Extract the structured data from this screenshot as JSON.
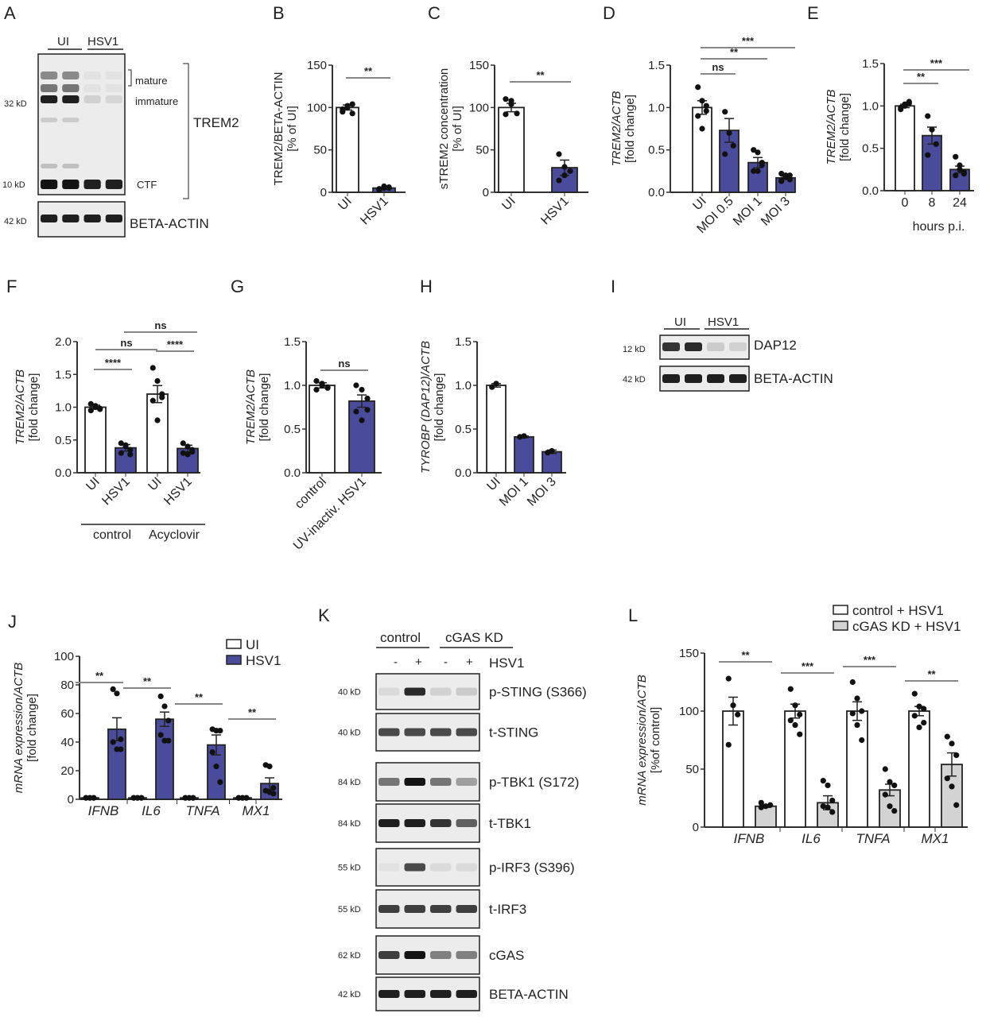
{
  "panel_letters": [
    "A",
    "B",
    "C",
    "D",
    "E",
    "F",
    "G",
    "H",
    "I",
    "J",
    "K",
    "L"
  ],
  "colors": {
    "hsv1": "#4b4b9b",
    "ui": "#ffffff",
    "cgas_kd": "#d3d3d3",
    "axis": "#333333",
    "sig_line": "#888888"
  },
  "blot_a": {
    "groups": [
      "UI",
      "HSV1"
    ],
    "markers": [
      "32 kD",
      "10 kD",
      "42 kD"
    ],
    "bands": [
      "mature",
      "immature",
      "CTF"
    ],
    "protein": "TREM2",
    "loading": "BETA-ACTIN"
  },
  "blot_i": {
    "groups": [
      "UI",
      "HSV1"
    ],
    "markers": [
      "12 kD",
      "42 kD"
    ],
    "rows": [
      "DAP12",
      "BETA-ACTIN"
    ]
  },
  "blot_k": {
    "groups": [
      "control",
      "cGAS KD"
    ],
    "treatment_signs": [
      "-",
      "+",
      "-",
      "+"
    ],
    "treatment": "HSV1",
    "rows": [
      {
        "marker": "40 kD",
        "label": "p-STING (S366)"
      },
      {
        "marker": "40 kD",
        "label": "t-STING"
      },
      {
        "marker": "84 kD",
        "label": "p-TBK1 (S172)"
      },
      {
        "marker": "84 kD",
        "label": "t-TBK1"
      },
      {
        "marker": "55 kD",
        "label": "p-IRF3 (S396)"
      },
      {
        "marker": "55 kD",
        "label": "t-IRF3"
      },
      {
        "marker": "62 kD",
        "label": "cGAS"
      },
      {
        "marker": "42 kD",
        "label": "BETA-ACTIN"
      }
    ]
  },
  "chart_data": [
    {
      "panel": "B",
      "type": "bar",
      "categories": [
        "UI",
        "HSV1"
      ],
      "values": [
        100,
        5
      ],
      "sem": [
        3,
        1
      ],
      "points": [
        [
          95,
          100,
          104,
          98,
          102,
          93
        ],
        [
          3,
          5,
          6,
          4,
          7,
          5
        ]
      ],
      "bar_colors": [
        "#ffffff",
        "#4b4b9b"
      ],
      "ylim": [
        0,
        150
      ],
      "yticks": [
        0,
        50,
        100,
        150
      ],
      "ytick_labels": [
        "0",
        "50",
        "100",
        "150"
      ],
      "ylabel": [
        "TREM2/BETA-ACTIN",
        "[% of UI]"
      ],
      "ylabel_italic": false,
      "xtick_rotation": -45,
      "significance": [
        {
          "from": 0,
          "to": 1,
          "label": "**"
        }
      ]
    },
    {
      "panel": "C",
      "type": "bar",
      "categories": [
        "UI",
        "HSV1"
      ],
      "values": [
        100,
        29
      ],
      "sem": [
        5,
        9
      ],
      "points": [
        [
          110,
          104,
          93,
          92,
          108
        ],
        [
          45,
          20,
          25,
          14,
          30
        ]
      ],
      "bar_colors": [
        "#ffffff",
        "#4b4b9b"
      ],
      "ylim": [
        0,
        150
      ],
      "yticks": [
        0,
        50,
        100,
        150
      ],
      "ytick_labels": [
        "0",
        "50",
        "100",
        "150"
      ],
      "ylabel": [
        "sTREM2 concentration",
        "[% of UI]"
      ],
      "ylabel_italic": false,
      "xtick_rotation": -45,
      "significance": [
        {
          "from": 0,
          "to": 1,
          "label": "**"
        }
      ]
    },
    {
      "panel": "D",
      "type": "bar",
      "categories": [
        "UI",
        "MOI 0.5",
        "MOI 1",
        "MOI 3"
      ],
      "values": [
        1.0,
        0.73,
        0.35,
        0.17
      ],
      "sem": [
        0.08,
        0.14,
        0.06,
        0.02
      ],
      "points": [
        [
          1.24,
          1.08,
          0.96,
          0.9,
          0.75,
          1.02
        ],
        [
          0.95,
          0.7,
          0.55,
          0.45
        ],
        [
          0.5,
          0.47,
          0.32,
          0.25,
          0.25,
          0.35
        ],
        [
          0.22,
          0.2,
          0.15,
          0.13,
          0.18,
          0.2,
          0.14
        ]
      ],
      "bar_colors": [
        "#ffffff",
        "#4b4b9b",
        "#4b4b9b",
        "#4b4b9b"
      ],
      "ylim": [
        0,
        1.5
      ],
      "yticks": [
        0,
        0.5,
        1.0,
        1.5
      ],
      "ytick_labels": [
        "0.0",
        "0.5",
        "1.0",
        "1.5"
      ],
      "ylabel": [
        "TREM2/ACTB",
        "[fold change]"
      ],
      "ylabel_italic": true,
      "xtick_rotation": -45,
      "significance": [
        {
          "from": 0,
          "to": 1,
          "label": "ns"
        },
        {
          "from": 0,
          "to": 2,
          "label": "**"
        },
        {
          "from": 0,
          "to": 3,
          "label": "***"
        }
      ]
    },
    {
      "panel": "E",
      "type": "bar",
      "categories": [
        "0",
        "8",
        "24"
      ],
      "values": [
        1.0,
        0.65,
        0.25
      ],
      "sem": [
        0.02,
        0.1,
        0.04
      ],
      "points": [
        [
          0.98,
          1.02,
          1.05,
          0.96,
          1.0,
          1.03
        ],
        [
          0.88,
          0.72,
          0.55,
          0.42
        ],
        [
          0.4,
          0.3,
          0.22,
          0.18,
          0.25,
          0.2
        ]
      ],
      "bar_colors": [
        "#ffffff",
        "#4b4b9b",
        "#4b4b9b"
      ],
      "ylim": [
        0,
        1.5
      ],
      "yticks": [
        0,
        0.5,
        1.0,
        1.5
      ],
      "ytick_labels": [
        "0.0",
        "0.5",
        "1.0",
        "1.5"
      ],
      "ylabel": [
        "TREM2/ACTB",
        "[fold change]"
      ],
      "ylabel_italic": true,
      "xtick_rotation": 0,
      "xlabel": "hours p.i.",
      "significance": [
        {
          "from": 0,
          "to": 1,
          "label": "**"
        },
        {
          "from": 0,
          "to": 2,
          "label": "***"
        }
      ]
    },
    {
      "panel": "F",
      "type": "bar",
      "categories": [
        "UI",
        "HSV1",
        "UI",
        "HSV1"
      ],
      "values": [
        1.0,
        0.38,
        1.2,
        0.37
      ],
      "sem": [
        0.03,
        0.05,
        0.13,
        0.05
      ],
      "points": [
        [
          1.05,
          1.0,
          0.97,
          0.95,
          1.02,
          0.98
        ],
        [
          0.45,
          0.4,
          0.35,
          0.3,
          0.42,
          0.28
        ],
        [
          1.6,
          1.4,
          1.2,
          1.1,
          0.8,
          1.15
        ],
        [
          0.45,
          0.4,
          0.35,
          0.3,
          0.28,
          0.32
        ]
      ],
      "bar_colors": [
        "#ffffff",
        "#4b4b9b",
        "#ffffff",
        "#4b4b9b"
      ],
      "groups": [
        {
          "label": "control",
          "from": 0,
          "to": 1
        },
        {
          "label": "Acyclovir",
          "from": 2,
          "to": 3
        }
      ],
      "ylim": [
        0,
        2.0
      ],
      "yticks": [
        0,
        0.5,
        1.0,
        1.5,
        2.0
      ],
      "ytick_labels": [
        "0.0",
        "0.5",
        "1.0",
        "1.5",
        "2.0"
      ],
      "ylabel": [
        "TREM2/ACTB",
        "[fold change]"
      ],
      "ylabel_italic": true,
      "xtick_rotation": -45,
      "significance": [
        {
          "from": 0,
          "to": 1,
          "label": "****"
        },
        {
          "from": 2,
          "to": 3,
          "label": "****"
        },
        {
          "from": 0,
          "to": 2,
          "label": "ns"
        },
        {
          "from": 1,
          "to": 3,
          "label": "ns"
        }
      ]
    },
    {
      "panel": "G",
      "type": "bar",
      "categories": [
        "control",
        "UV-inactiv. HSV1"
      ],
      "values": [
        1.0,
        0.82
      ],
      "sem": [
        0.03,
        0.07
      ],
      "points": [
        [
          1.05,
          1.0,
          0.97,
          0.95,
          1.02,
          0.98
        ],
        [
          1.0,
          0.95,
          0.85,
          0.7,
          0.6,
          0.72
        ]
      ],
      "bar_colors": [
        "#ffffff",
        "#4b4b9b"
      ],
      "ylim": [
        0,
        1.5
      ],
      "yticks": [
        0,
        0.5,
        1.0,
        1.5
      ],
      "ytick_labels": [
        "0.0",
        "0.5",
        "1.0",
        "1.5"
      ],
      "ylabel": [
        "TREM2/ACTB",
        "[fold change]"
      ],
      "ylabel_italic": true,
      "xtick_rotation": -45,
      "significance": [
        {
          "from": 0,
          "to": 1,
          "label": "ns"
        }
      ]
    },
    {
      "panel": "H",
      "type": "bar",
      "categories": [
        "UI",
        "MOI 1",
        "MOI 3"
      ],
      "values": [
        1.0,
        0.41,
        0.24
      ],
      "sem": [
        0.02,
        0.01,
        0.02
      ],
      "points": [
        [
          0.98,
          1.02
        ],
        [
          0.41,
          0.42
        ],
        [
          0.23,
          0.25
        ]
      ],
      "bar_colors": [
        "#ffffff",
        "#4b4b9b",
        "#4b4b9b"
      ],
      "ylim": [
        0,
        1.5
      ],
      "yticks": [
        0,
        0.5,
        1.0,
        1.5
      ],
      "ytick_labels": [
        "0.0",
        "0.5",
        "1.0",
        "1.5"
      ],
      "ylabel": [
        "TYROBP (DAP12)/ACTB",
        "[fold change]"
      ],
      "ylabel_italic": true,
      "xtick_rotation": -45,
      "significance": []
    },
    {
      "panel": "J",
      "type": "bar",
      "categories": [
        "IFNB",
        "IL6",
        "TNFA",
        "MX1"
      ],
      "xtick_italic": true,
      "series": [
        {
          "name": "UI",
          "color": "#ffffff",
          "values": [
            1,
            1,
            1,
            1
          ],
          "sem": [
            0.2,
            0.2,
            0.2,
            0.2
          ],
          "points": [
            [
              1,
              1,
              1,
              1,
              1,
              1
            ],
            [
              1,
              1,
              1,
              1,
              1,
              1
            ],
            [
              1,
              1,
              1,
              1,
              1,
              1
            ],
            [
              1,
              1,
              1,
              1,
              1,
              1
            ]
          ]
        },
        {
          "name": "HSV1",
          "color": "#4b4b9b",
          "values": [
            49,
            56,
            38,
            11
          ],
          "sem": [
            8,
            5,
            7,
            4
          ],
          "points": [
            [
              77,
              74,
              42,
              40,
              35,
              35
            ],
            [
              72,
              65,
              55,
              45,
              41,
              41
            ],
            [
              49,
              48,
              48,
              33,
              23,
              12
            ],
            [
              24,
              23,
              8,
              6,
              5,
              4
            ]
          ]
        }
      ],
      "legend": "top-right",
      "ylim": [
        0,
        100
      ],
      "yticks": [
        0,
        20,
        40,
        60,
        80,
        100
      ],
      "ytick_labels": [
        "0",
        "20",
        "40",
        "60",
        "80",
        "100"
      ],
      "ylabel": [
        "mRNA expression/ACTB",
        "[fold change]"
      ],
      "ylabel_italic": true,
      "xtick_rotation": 0,
      "significance": [
        {
          "category": 0,
          "label": "**"
        },
        {
          "category": 1,
          "label": "**"
        },
        {
          "category": 2,
          "label": "**"
        },
        {
          "category": 3,
          "label": "**"
        }
      ]
    },
    {
      "panel": "L",
      "type": "bar",
      "categories": [
        "IFNB",
        "IL6",
        "TNFA",
        "MX1"
      ],
      "xtick_italic": true,
      "series": [
        {
          "name": "control + HSV1",
          "color": "#ffffff",
          "values": [
            100,
            100,
            100,
            100
          ],
          "sem": [
            12,
            6,
            8,
            4
          ],
          "points": [
            [
              128,
              105,
              97,
              71
            ],
            [
              119,
              105,
              97,
              92,
              88,
              80
            ],
            [
              125,
              111,
              100,
              98,
              88,
              75
            ],
            [
              115,
              104,
              102,
              96,
              86,
              90
            ]
          ]
        },
        {
          "name": "cGAS KD + HSV1",
          "color": "#d3d3d3",
          "values": [
            18,
            21,
            32,
            54
          ],
          "sem": [
            1,
            6,
            5,
            10
          ],
          "points": [
            [
              17,
              18,
              19,
              21
            ],
            [
              40,
              36,
              23,
              18,
              17,
              13
            ],
            [
              50,
              39,
              36,
              28,
              18,
              14
            ],
            [
              78,
              72,
              62,
              42,
              35,
              19
            ]
          ]
        }
      ],
      "legend": "top-right",
      "ylim": [
        0,
        150
      ],
      "yticks": [
        0,
        50,
        100,
        150
      ],
      "ytick_labels": [
        "0",
        "50",
        "100",
        "150"
      ],
      "ylabel": [
        "mRNA expression/ACTB",
        "[%of control]"
      ],
      "ylabel_italic": true,
      "xtick_rotation": 0,
      "significance": [
        {
          "category": 0,
          "label": "**"
        },
        {
          "category": 1,
          "label": "***"
        },
        {
          "category": 2,
          "label": "***"
        },
        {
          "category": 3,
          "label": "**"
        }
      ]
    }
  ]
}
